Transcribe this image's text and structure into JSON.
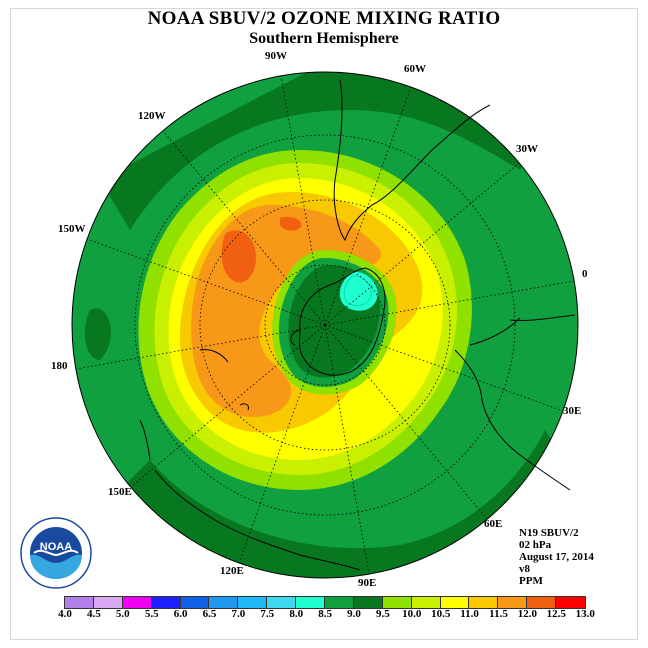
{
  "title": "NOAA SBUV/2 OZONE MIXING RATIO",
  "subtitle": "Southern Hemisphere",
  "longitude_labels": [
    {
      "text": "90W"
    },
    {
      "text": "60W"
    },
    {
      "text": "30W"
    },
    {
      "text": "0"
    },
    {
      "text": "30E"
    },
    {
      "text": "60E"
    },
    {
      "text": "90E"
    },
    {
      "text": "120E"
    },
    {
      "text": "150E"
    },
    {
      "text": "180"
    },
    {
      "text": "150W"
    },
    {
      "text": "120W"
    }
  ],
  "info": {
    "satellite": "N19 SBUV/2",
    "level": "02 hPa",
    "date": "August 17, 2014",
    "version": "v8",
    "units": "PPM"
  },
  "logo": {
    "text": "NOAA",
    "icon": "noaa-logo-icon"
  },
  "colorbar": {
    "levels": [
      "4.0",
      "4.5",
      "5.0",
      "5.5",
      "6.0",
      "6.5",
      "7.0",
      "7.5",
      "8.0",
      "8.5",
      "9.0",
      "9.5",
      "10.0",
      "10.5",
      "11.0",
      "11.5",
      "12.0",
      "12.5",
      "13.0"
    ],
    "colors": [
      "#b080e8",
      "#d8a8f0",
      "#f000f0",
      "#2020ff",
      "#1060e8",
      "#2098f0",
      "#20b8f8",
      "#40d8f0",
      "#20ffd0",
      "#10a040",
      "#087820",
      "#90e000",
      "#c8f000",
      "#ffff00",
      "#f8c800",
      "#f89818",
      "#f06010",
      "#ff0000",
      "#906040"
    ]
  }
}
